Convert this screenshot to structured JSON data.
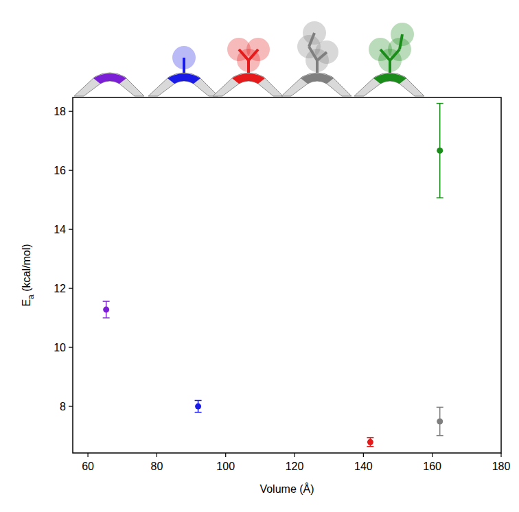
{
  "chart_data": {
    "type": "scatter",
    "x_label": "Volume (Å)",
    "y_label": "Ea (kcal/mol)",
    "x": [
      65.3,
      92,
      142,
      162.2,
      162.2
    ],
    "values": [
      11.28,
      8.0,
      6.79,
      7.49,
      16.67
    ],
    "errors": [
      0.28,
      0.2,
      0.15,
      0.48,
      1.6
    ],
    "colors": [
      "#7b1fd6",
      "#1a1ae6",
      "#e61a1a",
      "#7f7f7f",
      "#1a8c1a"
    ],
    "marker": "circle",
    "xlim": [
      55.6,
      180
    ],
    "xticks": [
      60,
      80,
      100,
      120,
      140,
      160,
      180
    ],
    "ylim": [
      6.42,
      18.47
    ],
    "yticks": [
      8,
      10,
      12,
      14,
      16,
      18
    ],
    "grid": false
  }
}
